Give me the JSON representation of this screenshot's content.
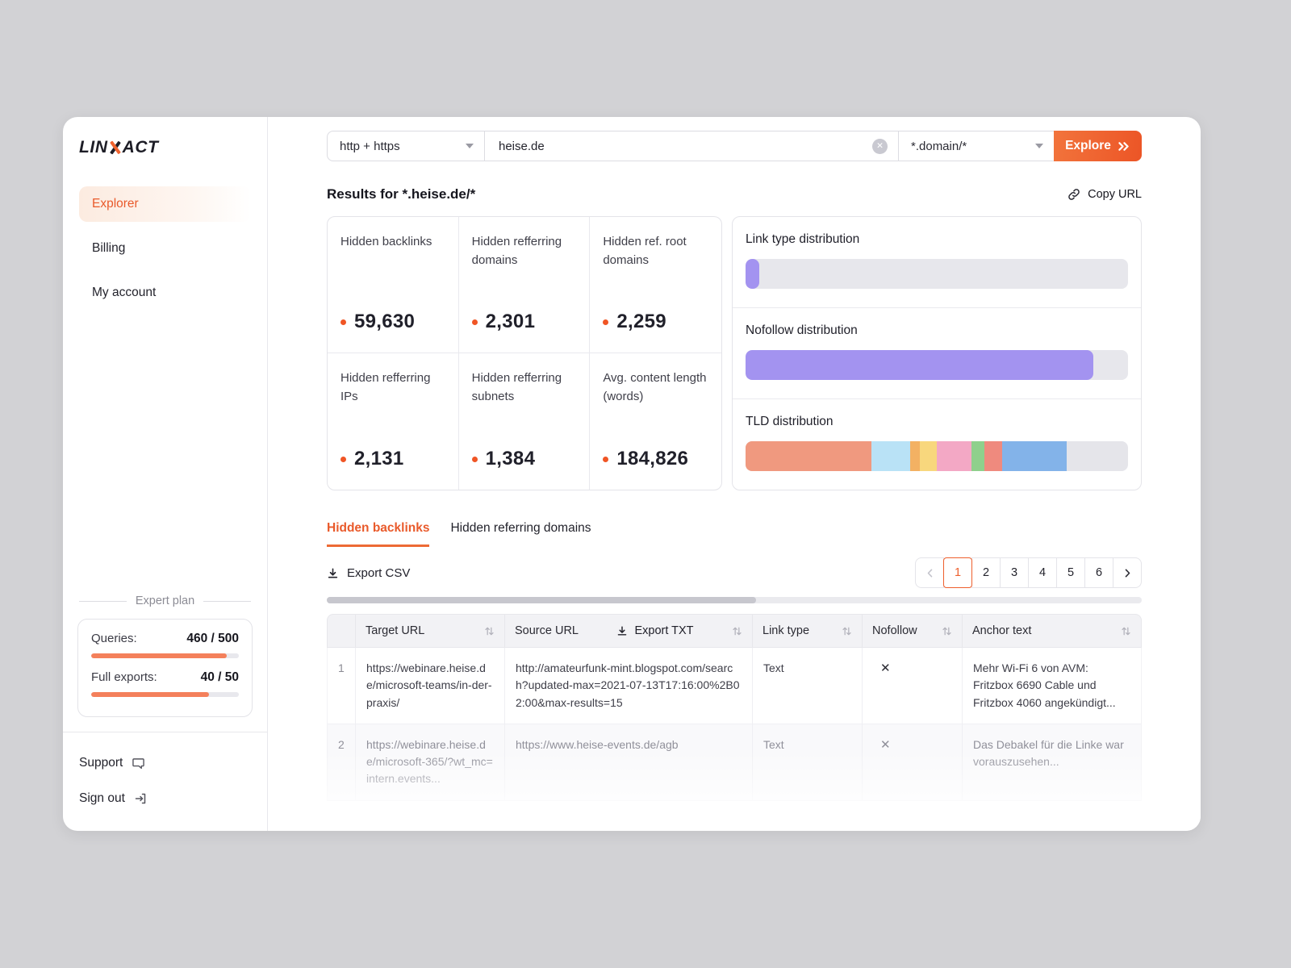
{
  "brand": {
    "part1": "LIN",
    "part2": "ACT"
  },
  "sidebar": {
    "items": [
      {
        "label": "Explorer"
      },
      {
        "label": "Billing"
      },
      {
        "label": "My account"
      }
    ],
    "plan": {
      "name": "Expert plan",
      "queries_label": "Queries:",
      "queries_value": "460 / 500",
      "queries_pct": 92,
      "exports_label": "Full exports:",
      "exports_value": "40 / 50",
      "exports_pct": 80
    },
    "support": "Support",
    "signout": "Sign out"
  },
  "search": {
    "protocol": "http + https",
    "query": "heise.de",
    "pattern": "*.domain/*",
    "explore": "Explore"
  },
  "results": {
    "heading": "Results for *.heise.de/*",
    "copy_url": "Copy URL"
  },
  "stats": [
    {
      "label": "Hidden backlinks",
      "value": "59,630"
    },
    {
      "label": "Hidden refferring domains",
      "value": "2,301"
    },
    {
      "label": "Hidden ref. root domains",
      "value": "2,259"
    },
    {
      "label": "Hidden refferring IPs",
      "value": "2,131"
    },
    {
      "label": "Hidden refferring subnets",
      "value": "1,384"
    },
    {
      "label": "Avg. content length (words)",
      "value": "184,826"
    }
  ],
  "distributions": [
    {
      "title": "Link type distribution",
      "track": "#e7e7ec",
      "single": true,
      "segments": [
        {
          "color": "#a393f0",
          "pct": 3.6
        }
      ]
    },
    {
      "title": "Nofollow distribution",
      "track": "#e7e7ec",
      "single": true,
      "segments": [
        {
          "color": "#a393f0",
          "pct": 91
        }
      ]
    },
    {
      "title": "TLD distribution",
      "track": "#e5e5ea",
      "single": false,
      "segments": [
        {
          "color": "#f0997f",
          "pct": 33
        },
        {
          "color": "#b9e2f6",
          "pct": 10
        },
        {
          "color": "#f3b163",
          "pct": 2.6
        },
        {
          "color": "#f8d77d",
          "pct": 4.4
        },
        {
          "color": "#f3a8c5",
          "pct": 9
        },
        {
          "color": "#8fd08c",
          "pct": 3.4
        },
        {
          "color": "#ef8a7e",
          "pct": 4.6
        },
        {
          "color": "#83b3e9",
          "pct": 17
        }
      ]
    }
  ],
  "tabs": [
    {
      "label": "Hidden backlinks"
    },
    {
      "label": "Hidden referring domains"
    }
  ],
  "toolbar": {
    "export_csv": "Export CSV"
  },
  "pagination": {
    "pages": [
      "1",
      "2",
      "3",
      "4",
      "5",
      "6"
    ],
    "active_index": 0
  },
  "table": {
    "headers": {
      "target": "Target URL",
      "source": "Source URL",
      "export_txt": "Export TXT",
      "link_type": "Link type",
      "nofollow": "Nofollow",
      "anchor": "Anchor text"
    },
    "rows": [
      {
        "num": "1",
        "target": "https://webinare.heise.de/microsoft-teams/in-der-praxis/",
        "source": "http://amateurfunk-mint.blogspot.com/search?updated-max=2021-07-13T17:16:00%2B02:00&max-results=15",
        "link_type": "Text",
        "nofollow": "✕",
        "anchor": "Mehr Wi-Fi 6 von AVM: Fritzbox 6690 Cable und Fritzbox 4060 angekündigt..."
      },
      {
        "num": "2",
        "target": "https://webinare.heise.de/microsoft-365/?wt_mc=intern.events...",
        "source": "https://www.heise-events.de/agb",
        "link_type": "Text",
        "nofollow": "✕",
        "anchor": "Das Debakel für die Linke war vorauszusehen..."
      }
    ]
  }
}
